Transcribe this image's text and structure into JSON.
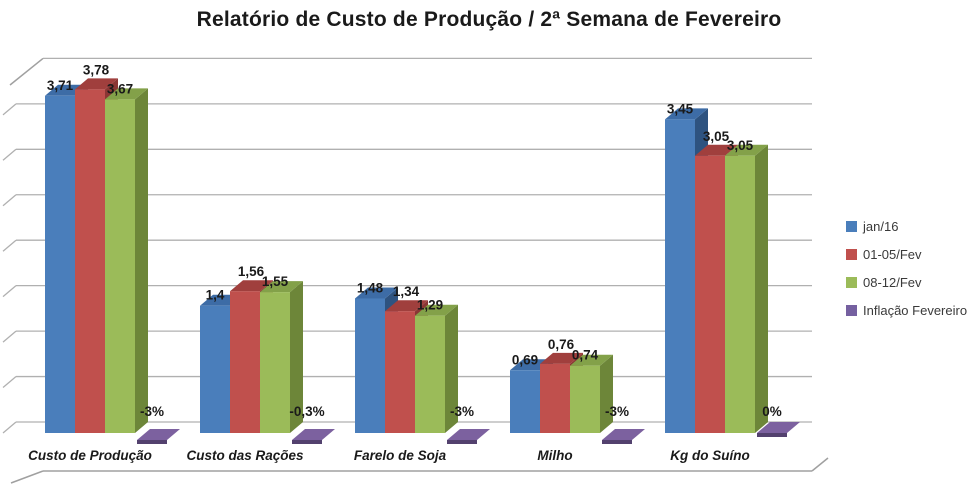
{
  "chart_data": {
    "type": "bar",
    "style": "3d-clustered-column",
    "title": "Relatório de Custo de Produção / 2ª Semana de Fevereiro",
    "categories": [
      "Custo de Produção",
      "Custo das Rações",
      "Farelo de Soja",
      "Milho",
      "Kg do Suíno"
    ],
    "series": [
      {
        "name": "jan/16",
        "color": "#4a7ebb",
        "color_top": "#3d6ca6",
        "color_side": "#2e5380",
        "values": [
          3.71,
          1.4,
          1.48,
          0.69,
          3.45
        ],
        "value_labels": [
          "3,71",
          "1,4",
          "1,48",
          "0,69",
          "3,45"
        ]
      },
      {
        "name": "01-05/Fev",
        "color": "#c0504d",
        "color_top": "#a03f3d",
        "color_side": "#8a3634",
        "values": [
          3.78,
          1.56,
          1.34,
          0.76,
          3.05
        ],
        "value_labels": [
          "3,78",
          "1,56",
          "1,34",
          "0,76",
          "3,05"
        ]
      },
      {
        "name": "08-12/Fev",
        "color": "#9bbb59",
        "color_top": "#83a149",
        "color_side": "#6d8639",
        "values": [
          3.67,
          1.55,
          1.29,
          0.74,
          3.05
        ],
        "value_labels": [
          "3,67",
          "1,55",
          "1,29",
          "0,74",
          "3,05"
        ]
      },
      {
        "name": "Inflação Fevereiro",
        "color": "#7560a0",
        "color_top": "#7c619f",
        "color_side": "#53416e",
        "values_percent": [
          -3,
          -0.3,
          -3,
          -3,
          0
        ],
        "value_labels": [
          "-3%",
          "-0,3%",
          "-3%",
          "-3%",
          "0%"
        ]
      }
    ],
    "ylim": [
      0,
      4
    ],
    "gridline_step": 0.5,
    "y_axis_tick_labels_visible": false,
    "grid": true,
    "legend_position": "right",
    "colors": {
      "gridline": "#b0b0b0",
      "frame": "#a0a0a0",
      "label_text": "#1a1a1a",
      "legend_text": "#3a3a3a"
    }
  }
}
